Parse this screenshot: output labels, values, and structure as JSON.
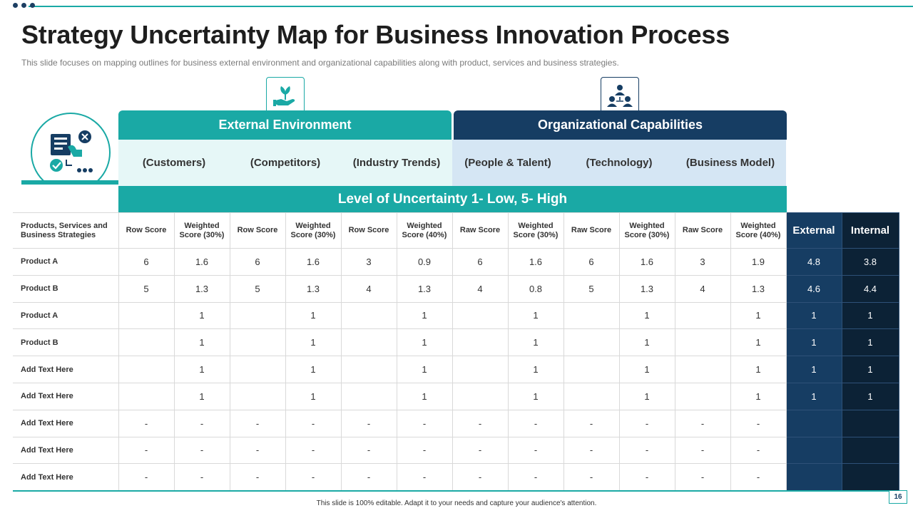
{
  "title": "Strategy Uncertainty Map for Business Innovation Process",
  "subtitle": "This slide focuses on mapping outlines for business external environment  and organizational capabilities along with product, services and business strategies.",
  "groups": {
    "external": "External Environment",
    "organizational": "Organizational Capabilities"
  },
  "categories": [
    "(Customers)",
    "(Competitors)",
    "(Industry Trends)",
    "(People & Talent)",
    "(Technology)",
    "(Business Model)"
  ],
  "uncertainty_label": "Level of Uncertainty 1- Low, 5- High",
  "table": {
    "corner_header": "Products, Services and Business Strategies",
    "column_headers": [
      "Row Score",
      "Weighted Score (30%)",
      "Row Score",
      "Weighted Score (30%)",
      "Row Score",
      "Weighted Score (40%)",
      "Raw Score",
      "Weighted Score (30%)",
      "Raw Score",
      "Weighted Score (30%)",
      "Raw Score",
      "Weighted Score (40%)"
    ],
    "external_header": "External",
    "internal_header": "Internal",
    "rows": [
      {
        "label": "Product A",
        "cells": [
          "6",
          "1.6",
          "6",
          "1.6",
          "3",
          "0.9",
          "6",
          "1.6",
          "6",
          "1.6",
          "3",
          "1.9"
        ],
        "external": "4.8",
        "internal": "3.8"
      },
      {
        "label": "Product B",
        "cells": [
          "5",
          "1.3",
          "5",
          "1.3",
          "4",
          "1.3",
          "4",
          "0.8",
          "5",
          "1.3",
          "4",
          "1.3"
        ],
        "external": "4.6",
        "internal": "4.4"
      },
      {
        "label": "Product A",
        "cells": [
          "",
          "1",
          "",
          "1",
          "",
          "1",
          "",
          "1",
          "",
          "1",
          "",
          "1"
        ],
        "external": "1",
        "internal": "1"
      },
      {
        "label": "Product B",
        "cells": [
          "",
          "1",
          "",
          "1",
          "",
          "1",
          "",
          "1",
          "",
          "1",
          "",
          "1"
        ],
        "external": "1",
        "internal": "1"
      },
      {
        "label": "Add Text Here",
        "cells": [
          "",
          "1",
          "",
          "1",
          "",
          "1",
          "",
          "1",
          "",
          "1",
          "",
          "1"
        ],
        "external": "1",
        "internal": "1"
      },
      {
        "label": "Add Text Here",
        "cells": [
          "",
          "1",
          "",
          "1",
          "",
          "1",
          "",
          "1",
          "",
          "1",
          "",
          "1"
        ],
        "external": "1",
        "internal": "1"
      },
      {
        "label": "Add Text Here",
        "cells": [
          "-",
          "-",
          "-",
          "-",
          "-",
          "-",
          "-",
          "-",
          "-",
          "-",
          "-",
          "-"
        ],
        "external": "",
        "internal": ""
      },
      {
        "label": "Add Text Here",
        "cells": [
          "-",
          "-",
          "-",
          "-",
          "-",
          "-",
          "-",
          "-",
          "-",
          "-",
          "-",
          "-"
        ],
        "external": "",
        "internal": ""
      },
      {
        "label": "Add Text Here",
        "cells": [
          "-",
          "-",
          "-",
          "-",
          "-",
          "-",
          "-",
          "-",
          "-",
          "-",
          "-",
          "-"
        ],
        "external": "",
        "internal": ""
      }
    ]
  },
  "footer": "This slide is 100% editable. Adapt it to your needs and capture your audience's attention.",
  "page_number": "16",
  "icons": {
    "external": "hand-plant-icon",
    "organizational": "team-hierarchy-icon",
    "left_badge": "checklist-decision-icon"
  },
  "colors": {
    "teal": "#1aa9a5",
    "navy": "#163d63",
    "dark_navy": "#0c2236",
    "light_teal": "#e6f7f7",
    "light_blue": "#d5e6f4"
  }
}
